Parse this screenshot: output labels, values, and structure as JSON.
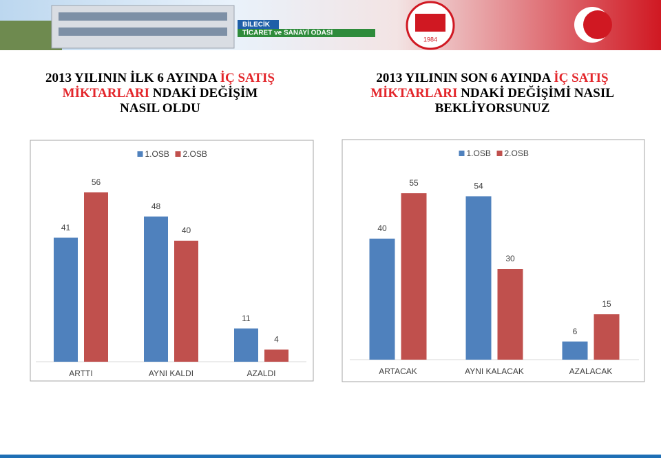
{
  "header": {
    "brand_top": "BİLECİK",
    "brand_bottom": "TİCARET ve SANAYİ ODASI",
    "logo_year": "1984"
  },
  "chart_data": [
    {
      "type": "bar",
      "title": [
        "2013 YILININ İLK 6 AYINDA ",
        "İÇ SATIŞ",
        " MİKTARLARI",
        " NDAKİ DEĞİŞİM",
        "NASIL OLDU"
      ],
      "categories": [
        "ARTTI",
        "AYNI KALDI",
        "AZALDI"
      ],
      "series": [
        {
          "name": "1.OSB",
          "color": "#4f81bd",
          "values": [
            41,
            48,
            11
          ]
        },
        {
          "name": "2.OSB",
          "color": "#c0504d",
          "values": [
            56,
            40,
            4
          ]
        }
      ]
    },
    {
      "type": "bar",
      "title": [
        "2013 YILININ SON 6 AYINDA ",
        "İÇ SATIŞ",
        " MİKTARLARI",
        " NDAKİ DEĞİŞİMİ NASIL",
        "BEKLİYORSUNUZ"
      ],
      "categories": [
        "ARTACAK",
        "AYNI KALACAK",
        "AZALACAK"
      ],
      "series": [
        {
          "name": "1.OSB",
          "color": "#4f81bd",
          "values": [
            40,
            54,
            6
          ]
        },
        {
          "name": "2.OSB",
          "color": "#c0504d",
          "values": [
            55,
            30,
            15
          ]
        }
      ]
    }
  ]
}
